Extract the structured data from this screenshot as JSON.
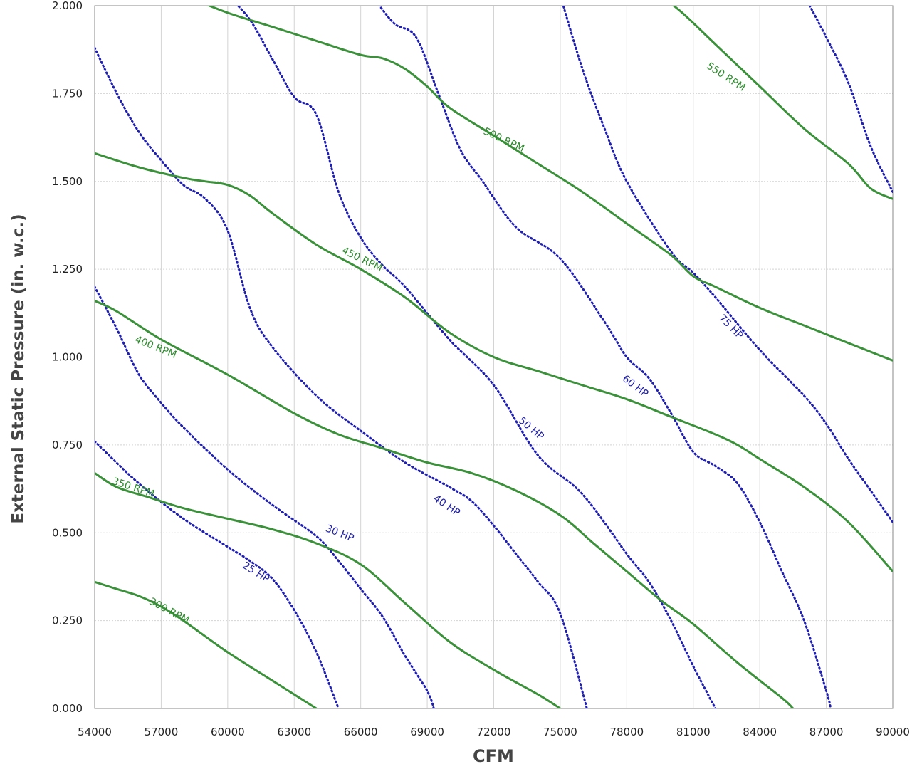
{
  "chart_data": {
    "type": "line",
    "xlabel": "CFM",
    "ylabel": "External Static Pressure (in. w.c.)",
    "xlim": [
      54000,
      90000
    ],
    "ylim": [
      0,
      2.0
    ],
    "x_ticks": [
      "54000",
      "57000",
      "60000",
      "63000",
      "66000",
      "69000",
      "72000",
      "75000",
      "78000",
      "81000",
      "84000",
      "87000",
      "90000"
    ],
    "y_ticks": [
      "0.000",
      "0.250",
      "0.500",
      "0.750",
      "1.000",
      "1.250",
      "1.500",
      "1.750",
      "2.000"
    ],
    "grid": true,
    "colors": {
      "rpm": "#3a913a",
      "hp": "#1f1fb4",
      "grid": "#d4d4d4",
      "frame": "#888888"
    },
    "rpm_curves": [
      {
        "label": "300 RPM",
        "points": [
          [
            54000,
            0.36
          ],
          [
            55000,
            0.34
          ],
          [
            56000,
            0.32
          ],
          [
            57000,
            0.29
          ],
          [
            58000,
            0.25
          ],
          [
            60000,
            0.16
          ],
          [
            62000,
            0.08
          ],
          [
            64000,
            0.0
          ]
        ]
      },
      {
        "label": "350 RPM",
        "points": [
          [
            54000,
            0.67
          ],
          [
            55000,
            0.63
          ],
          [
            56500,
            0.6
          ],
          [
            58000,
            0.57
          ],
          [
            60000,
            0.54
          ],
          [
            62000,
            0.51
          ],
          [
            64000,
            0.47
          ],
          [
            66000,
            0.41
          ],
          [
            68000,
            0.3
          ],
          [
            70000,
            0.19
          ],
          [
            72000,
            0.11
          ],
          [
            74000,
            0.04
          ],
          [
            75000,
            0.0
          ]
        ]
      },
      {
        "label": "400 RPM",
        "points": [
          [
            54000,
            1.16
          ],
          [
            55000,
            1.13
          ],
          [
            57000,
            1.05
          ],
          [
            60000,
            0.95
          ],
          [
            63000,
            0.84
          ],
          [
            65000,
            0.78
          ],
          [
            67000,
            0.74
          ],
          [
            69000,
            0.7
          ],
          [
            71000,
            0.67
          ],
          [
            73000,
            0.62
          ],
          [
            75000,
            0.55
          ],
          [
            76500,
            0.47
          ],
          [
            78000,
            0.39
          ],
          [
            79500,
            0.31
          ],
          [
            81000,
            0.24
          ],
          [
            83000,
            0.13
          ],
          [
            85000,
            0.03
          ],
          [
            85500,
            0.0
          ]
        ]
      },
      {
        "label": "450 RPM",
        "points": [
          [
            54000,
            1.58
          ],
          [
            56000,
            1.54
          ],
          [
            58000,
            1.51
          ],
          [
            59000,
            1.5
          ],
          [
            60000,
            1.49
          ],
          [
            61000,
            1.46
          ],
          [
            62000,
            1.41
          ],
          [
            64000,
            1.32
          ],
          [
            66000,
            1.25
          ],
          [
            68000,
            1.17
          ],
          [
            70000,
            1.07
          ],
          [
            72000,
            1.0
          ],
          [
            74000,
            0.96
          ],
          [
            76000,
            0.92
          ],
          [
            78000,
            0.88
          ],
          [
            80000,
            0.83
          ],
          [
            82000,
            0.78
          ],
          [
            83000,
            0.75
          ],
          [
            84000,
            0.71
          ],
          [
            86000,
            0.63
          ],
          [
            88000,
            0.53
          ],
          [
            90000,
            0.39
          ]
        ]
      },
      {
        "label": "500 RPM",
        "points": [
          [
            58000,
            2.03
          ],
          [
            60000,
            1.98
          ],
          [
            62000,
            1.94
          ],
          [
            64000,
            1.9
          ],
          [
            66000,
            1.86
          ],
          [
            67000,
            1.85
          ],
          [
            68000,
            1.82
          ],
          [
            69000,
            1.77
          ],
          [
            70000,
            1.71
          ],
          [
            72000,
            1.63
          ],
          [
            74000,
            1.55
          ],
          [
            76000,
            1.47
          ],
          [
            78000,
            1.38
          ],
          [
            80000,
            1.29
          ],
          [
            81000,
            1.23
          ],
          [
            82000,
            1.2
          ],
          [
            84000,
            1.14
          ],
          [
            86000,
            1.09
          ],
          [
            88000,
            1.04
          ],
          [
            90000,
            0.99
          ]
        ]
      },
      {
        "label": "550 RPM",
        "points": [
          [
            79500,
            2.03
          ],
          [
            80500,
            1.98
          ],
          [
            82000,
            1.89
          ],
          [
            84000,
            1.77
          ],
          [
            86000,
            1.65
          ],
          [
            88000,
            1.55
          ],
          [
            89000,
            1.48
          ],
          [
            90000,
            1.45
          ]
        ]
      }
    ],
    "hp_curves": [
      {
        "label": "25 HP",
        "points": [
          [
            54000,
            0.76
          ],
          [
            56000,
            0.64
          ],
          [
            58000,
            0.54
          ],
          [
            60000,
            0.46
          ],
          [
            61000,
            0.42
          ],
          [
            62000,
            0.37
          ],
          [
            63000,
            0.28
          ],
          [
            64000,
            0.16
          ],
          [
            65000,
            0.0
          ]
        ]
      },
      {
        "label": "30 HP",
        "points": [
          [
            54000,
            1.2
          ],
          [
            55000,
            1.08
          ],
          [
            56000,
            0.95
          ],
          [
            57000,
            0.87
          ],
          [
            58000,
            0.8
          ],
          [
            60000,
            0.68
          ],
          [
            62000,
            0.58
          ],
          [
            64000,
            0.49
          ],
          [
            65000,
            0.42
          ],
          [
            66000,
            0.34
          ],
          [
            67000,
            0.26
          ],
          [
            68000,
            0.15
          ],
          [
            69000,
            0.05
          ],
          [
            69300,
            0.0
          ]
        ]
      },
      {
        "label": "40 HP",
        "points": [
          [
            54000,
            1.88
          ],
          [
            55000,
            1.75
          ],
          [
            56000,
            1.64
          ],
          [
            57000,
            1.56
          ],
          [
            58000,
            1.49
          ],
          [
            59000,
            1.45
          ],
          [
            60000,
            1.36
          ],
          [
            61000,
            1.14
          ],
          [
            62000,
            1.03
          ],
          [
            64000,
            0.89
          ],
          [
            66000,
            0.79
          ],
          [
            68000,
            0.7
          ],
          [
            70000,
            0.63
          ],
          [
            71000,
            0.59
          ],
          [
            72000,
            0.52
          ],
          [
            73000,
            0.44
          ],
          [
            74000,
            0.36
          ],
          [
            75000,
            0.27
          ],
          [
            76200,
            0.0
          ]
        ]
      },
      {
        "label": "50 HP",
        "points": [
          [
            60000,
            2.03
          ],
          [
            61000,
            1.96
          ],
          [
            62000,
            1.85
          ],
          [
            63000,
            1.74
          ],
          [
            64000,
            1.69
          ],
          [
            65000,
            1.47
          ],
          [
            66000,
            1.34
          ],
          [
            67000,
            1.26
          ],
          [
            68000,
            1.2
          ],
          [
            70000,
            1.05
          ],
          [
            72000,
            0.92
          ],
          [
            74000,
            0.72
          ],
          [
            76000,
            0.61
          ],
          [
            78000,
            0.44
          ],
          [
            79000,
            0.36
          ],
          [
            80000,
            0.25
          ],
          [
            81000,
            0.12
          ],
          [
            82000,
            0.0
          ]
        ]
      },
      {
        "label": "60 HP",
        "points": [
          [
            66500,
            2.03
          ],
          [
            67500,
            1.95
          ],
          [
            68500,
            1.91
          ],
          [
            69500,
            1.75
          ],
          [
            70500,
            1.59
          ],
          [
            71500,
            1.5
          ],
          [
            73000,
            1.37
          ],
          [
            75000,
            1.28
          ],
          [
            77000,
            1.1
          ],
          [
            78000,
            1.0
          ],
          [
            79000,
            0.94
          ],
          [
            80000,
            0.84
          ],
          [
            81000,
            0.73
          ],
          [
            82000,
            0.69
          ],
          [
            83000,
            0.64
          ],
          [
            84000,
            0.53
          ],
          [
            85000,
            0.39
          ],
          [
            86000,
            0.25
          ],
          [
            87000,
            0.05
          ],
          [
            87200,
            0.0
          ]
        ]
      },
      {
        "label": "75 HP",
        "points": [
          [
            75000,
            2.03
          ],
          [
            76000,
            1.82
          ],
          [
            77000,
            1.65
          ],
          [
            78000,
            1.5
          ],
          [
            80000,
            1.3
          ],
          [
            81000,
            1.24
          ],
          [
            82000,
            1.17
          ],
          [
            84000,
            1.02
          ],
          [
            86000,
            0.89
          ],
          [
            87000,
            0.81
          ],
          [
            88000,
            0.71
          ],
          [
            89000,
            0.62
          ],
          [
            90000,
            0.53
          ]
        ]
      },
      {
        "label": "",
        "points": [
          [
            86000,
            2.03
          ],
          [
            87000,
            1.91
          ],
          [
            88000,
            1.78
          ],
          [
            89000,
            1.6
          ],
          [
            90000,
            1.47
          ]
        ]
      }
    ],
    "annotations": [
      {
        "text": "300 RPM",
        "x": 57300,
        "y": 0.27,
        "angle": 28
      },
      {
        "text": "350 RPM",
        "x": 55700,
        "y": 0.62,
        "angle": 18
      },
      {
        "text": "400 RPM",
        "x": 56700,
        "y": 1.02,
        "angle": 22
      },
      {
        "text": "450 RPM",
        "x": 66000,
        "y": 1.27,
        "angle": 26
      },
      {
        "text": "500 RPM",
        "x": 72400,
        "y": 1.61,
        "angle": 25
      },
      {
        "text": "550 RPM",
        "x": 82400,
        "y": 1.79,
        "angle": 33
      },
      {
        "text": "25 HP",
        "x": 61200,
        "y": 0.38,
        "angle": 32
      },
      {
        "text": "30 HP",
        "x": 65000,
        "y": 0.49,
        "angle": 22
      },
      {
        "text": "40 HP",
        "x": 69800,
        "y": 0.57,
        "angle": 34
      },
      {
        "text": "50 HP",
        "x": 73600,
        "y": 0.79,
        "angle": 40
      },
      {
        "text": "60 HP",
        "x": 78300,
        "y": 0.91,
        "angle": 37
      },
      {
        "text": "75 HP",
        "x": 82600,
        "y": 1.08,
        "angle": 45
      }
    ]
  }
}
